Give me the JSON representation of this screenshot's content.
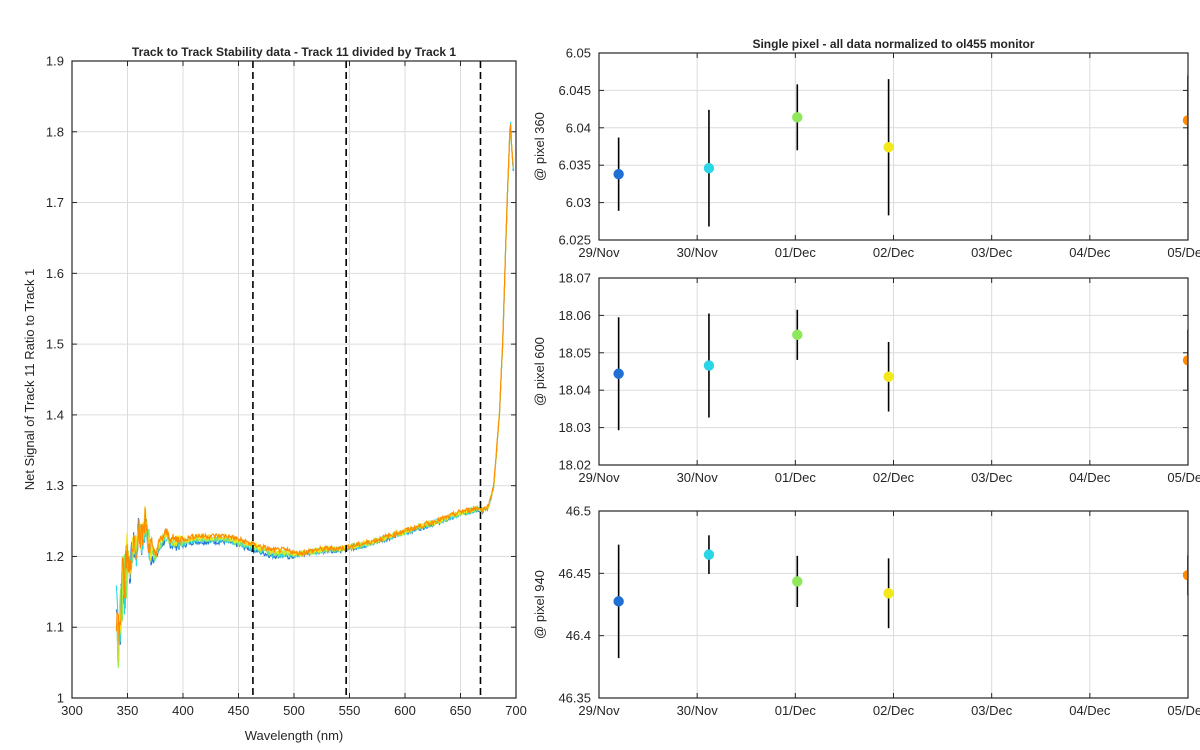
{
  "chart_data": [
    {
      "id": "track-ratio",
      "type": "line",
      "title": "Track to Track Stability data - Track 11 divided by Track 1",
      "xlabel": "Wavelength (nm)",
      "ylabel": "Net Signal of Track 11 Ratio to Track 1",
      "xlim": [
        300,
        700
      ],
      "ylim": [
        1.0,
        1.9
      ],
      "xticks": [
        "300",
        "350",
        "400",
        "450",
        "500",
        "550",
        "600",
        "650",
        "700"
      ],
      "yticks": [
        "1",
        "1.1",
        "1.2",
        "1.3",
        "1.4",
        "1.5",
        "1.6",
        "1.7",
        "1.8",
        "1.9"
      ],
      "grid": true,
      "vlines": [
        463,
        547,
        668
      ],
      "series_colors": [
        "#1f77d4",
        "#2ad5e6",
        "#8ee85a",
        "#f2e81a",
        "#ff8c00"
      ],
      "spectrum": {
        "x": [
          340,
          342,
          345,
          348,
          350,
          352,
          355,
          358,
          360,
          363,
          366,
          370,
          375,
          380,
          385,
          390,
          400,
          410,
          420,
          430,
          440,
          450,
          460,
          470,
          480,
          490,
          500,
          510,
          520,
          530,
          540,
          550,
          560,
          570,
          580,
          590,
          600,
          610,
          620,
          630,
          640,
          650,
          660,
          665,
          670,
          675,
          680,
          685,
          688,
          690,
          692,
          694,
          695,
          696,
          698
        ],
        "y": [
          1.13,
          1.08,
          1.15,
          1.17,
          1.2,
          1.18,
          1.22,
          1.21,
          1.24,
          1.22,
          1.25,
          1.21,
          1.2,
          1.22,
          1.23,
          1.22,
          1.22,
          1.225,
          1.225,
          1.225,
          1.225,
          1.22,
          1.215,
          1.21,
          1.205,
          1.205,
          1.203,
          1.205,
          1.208,
          1.21,
          1.21,
          1.213,
          1.216,
          1.22,
          1.225,
          1.23,
          1.235,
          1.24,
          1.245,
          1.25,
          1.255,
          1.262,
          1.265,
          1.268,
          1.265,
          1.27,
          1.3,
          1.4,
          1.5,
          1.6,
          1.7,
          1.78,
          1.82,
          1.78,
          1.74
        ]
      }
    },
    {
      "id": "pixel-360",
      "type": "scatter",
      "title": "Single pixel - all data normalized to ol455 monitor",
      "xlabel": "",
      "ylabel": "@ pixel 360",
      "xlim": [
        0,
        6
      ],
      "ylim": [
        6.025,
        6.05
      ],
      "xticks": [
        "29/Nov",
        "30/Nov",
        "01/Dec",
        "02/Dec",
        "03/Dec",
        "04/Dec",
        "05/Dec"
      ],
      "yticks": [
        "6.025",
        "6.03",
        "6.035",
        "6.04",
        "6.045",
        "6.05"
      ],
      "grid": true,
      "points": [
        {
          "x": 0.2,
          "y": 6.0338,
          "err": 0.0049,
          "color": "#1f6fd4"
        },
        {
          "x": 1.12,
          "y": 6.0346,
          "err": 0.0078,
          "color": "#2ad5e6"
        },
        {
          "x": 2.02,
          "y": 6.0414,
          "err": 0.0044,
          "color": "#8ee85a"
        },
        {
          "x": 2.95,
          "y": 6.0374,
          "err": 0.0091,
          "color": "#f2e81a"
        },
        {
          "x": 6.0,
          "y": 6.041,
          "err": 0.006,
          "color": "#ff8c00"
        }
      ]
    },
    {
      "id": "pixel-600",
      "type": "scatter",
      "title": "",
      "xlabel": "",
      "ylabel": "@ pixel 600",
      "xlim": [
        0,
        6
      ],
      "ylim": [
        18.02,
        18.07
      ],
      "xticks": [
        "29/Nov",
        "30/Nov",
        "01/Dec",
        "02/Dec",
        "03/Dec",
        "04/Dec",
        "05/Dec"
      ],
      "yticks": [
        "18.02",
        "18.03",
        "18.04",
        "18.05",
        "18.06",
        "18.07"
      ],
      "grid": true,
      "points": [
        {
          "x": 0.2,
          "y": 18.0444,
          "err": 0.0151,
          "color": "#1f6fd4"
        },
        {
          "x": 1.12,
          "y": 18.0466,
          "err": 0.0139,
          "color": "#2ad5e6"
        },
        {
          "x": 2.02,
          "y": 18.0548,
          "err": 0.0067,
          "color": "#8ee85a"
        },
        {
          "x": 2.95,
          "y": 18.0436,
          "err": 0.0093,
          "color": "#f2e81a"
        },
        {
          "x": 6.0,
          "y": 18.048,
          "err": 0.0082,
          "color": "#ff8c00"
        }
      ]
    },
    {
      "id": "pixel-940",
      "type": "scatter",
      "title": "",
      "xlabel": "",
      "ylabel": "@ pixel 940",
      "xlim": [
        0,
        6
      ],
      "ylim": [
        46.35,
        46.5
      ],
      "xticks": [
        "29/Nov",
        "30/Nov",
        "01/Dec",
        "02/Dec",
        "03/Dec",
        "04/Dec",
        "05/Dec"
      ],
      "yticks": [
        "46.35",
        "46.4",
        "46.45",
        "46.5"
      ],
      "grid": true,
      "points": [
        {
          "x": 0.2,
          "y": 46.4275,
          "err": 0.0455,
          "color": "#1f6fd4"
        },
        {
          "x": 1.12,
          "y": 46.465,
          "err": 0.0155,
          "color": "#2ad5e6"
        },
        {
          "x": 2.02,
          "y": 46.4435,
          "err": 0.0205,
          "color": "#8ee85a"
        },
        {
          "x": 2.95,
          "y": 46.434,
          "err": 0.028,
          "color": "#f2e81a"
        },
        {
          "x": 6.0,
          "y": 46.4485,
          "err": 0.016,
          "color": "#ff8c00"
        }
      ]
    }
  ]
}
